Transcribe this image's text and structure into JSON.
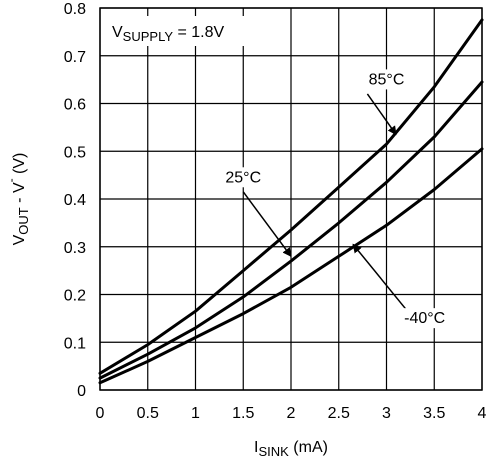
{
  "chart_data": {
    "type": "line",
    "title": "",
    "x_axis": {
      "label_main": "I",
      "label_sub": "SINK",
      "label_unit": " (mA)",
      "range": [
        0,
        4
      ],
      "ticks": [
        "0",
        "0.5",
        "1",
        "1.5",
        "2",
        "2.5",
        "3",
        "3.5",
        "4"
      ],
      "tick_values": [
        0,
        0.5,
        1,
        1.5,
        2,
        2.5,
        3,
        3.5,
        4
      ]
    },
    "y_axis": {
      "label_main": "V",
      "label_sub": "OUT",
      "label_rest": " - V",
      "label_dash": "-",
      "label_unit": " (V)",
      "range": [
        0,
        0.8
      ],
      "ticks": [
        "0",
        "0.1",
        "0.2",
        "0.3",
        "0.4",
        "0.5",
        "0.6",
        "0.7",
        "0.8"
      ],
      "tick_values": [
        0,
        0.1,
        0.2,
        0.3,
        0.4,
        0.5,
        0.6,
        0.7,
        0.8
      ]
    },
    "grid": true,
    "supply_note": {
      "main": "V",
      "sub": "SUPPLY",
      "rest": " = 1.8V"
    },
    "series": [
      {
        "name": "85°C",
        "x": [
          0,
          0.5,
          1.0,
          1.5,
          2.0,
          2.5,
          3.0,
          3.5,
          4.0
        ],
        "y": [
          0.035,
          0.095,
          0.165,
          0.25,
          0.335,
          0.425,
          0.515,
          0.635,
          0.775
        ]
      },
      {
        "name": "25°C",
        "x": [
          0,
          0.5,
          1.0,
          1.5,
          2.0,
          2.5,
          3.0,
          3.5,
          4.0
        ],
        "y": [
          0.025,
          0.075,
          0.13,
          0.195,
          0.27,
          0.35,
          0.435,
          0.53,
          0.645
        ]
      },
      {
        "name": "-40°C",
        "x": [
          0,
          0.5,
          1.0,
          1.5,
          2.0,
          2.5,
          3.0,
          3.5,
          4.0
        ],
        "y": [
          0.015,
          0.06,
          0.11,
          0.16,
          0.215,
          0.28,
          0.345,
          0.42,
          0.505
        ]
      }
    ],
    "annotations": [
      {
        "text": "85°C",
        "text_at": [
          3.0,
          0.64
        ],
        "arrow_from": [
          2.8,
          0.62
        ],
        "arrow_to": [
          3.1,
          0.535
        ]
      },
      {
        "text": "25°C",
        "text_at": [
          1.5,
          0.435
        ],
        "arrow_from": [
          1.5,
          0.415
        ],
        "arrow_to": [
          2.0,
          0.28
        ]
      },
      {
        "text": "-40°C",
        "text_at": [
          3.4,
          0.14
        ],
        "arrow_from": [
          3.2,
          0.17
        ],
        "arrow_to": [
          2.65,
          0.305
        ]
      }
    ]
  }
}
